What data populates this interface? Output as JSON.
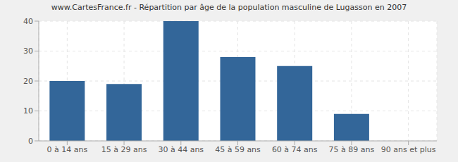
{
  "chart_data": {
    "type": "bar",
    "title": "www.CartesFrance.fr - Répartition par âge de la population masculine de Lugasson en 2007",
    "categories": [
      "0 à 14 ans",
      "15 à 29 ans",
      "30 à 44 ans",
      "45 à 59 ans",
      "60 à 74 ans",
      "75 à 89 ans",
      "90 ans et plus"
    ],
    "values": [
      20,
      19,
      40,
      28,
      25,
      9,
      0
    ],
    "color": "#336699",
    "ylim": [
      0,
      40
    ],
    "yticks": [
      0,
      10,
      20,
      30,
      40
    ],
    "grid": true
  }
}
